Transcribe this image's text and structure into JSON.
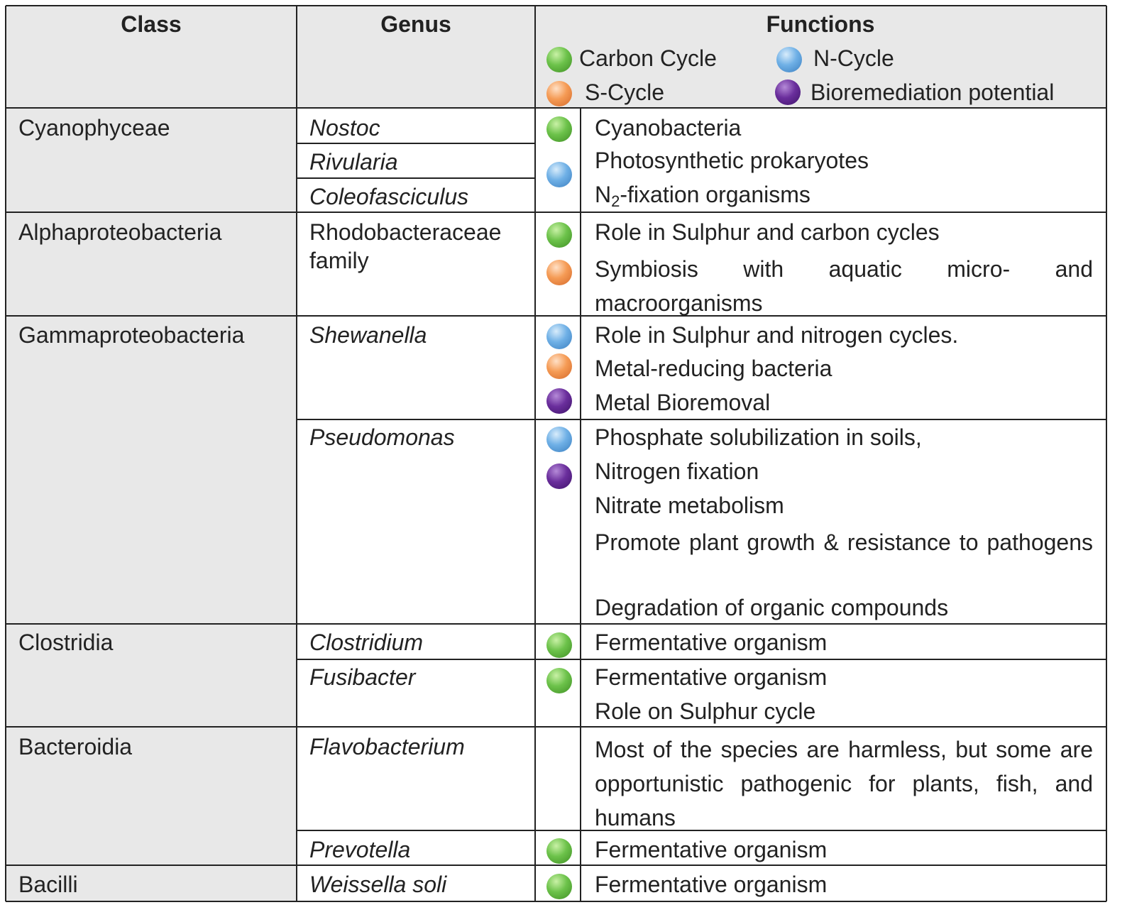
{
  "header": {
    "class": "Class",
    "genus": "Genus",
    "functions": "Functions",
    "legend": [
      {
        "color": "green",
        "icon": "green-dot-icon",
        "label": "Carbon Cycle"
      },
      {
        "color": "blue",
        "icon": "blue-dot-icon",
        "label": "N-Cycle"
      },
      {
        "color": "orange",
        "icon": "orange-dot-icon",
        "label": "S-Cycle"
      },
      {
        "color": "purple",
        "icon": "purple-dot-icon",
        "label": "Bioremediation potential"
      }
    ]
  },
  "colors": {
    "green": "#6cc24a",
    "blue": "#6fb0e6",
    "orange": "#f59b55",
    "purple": "#6a2e9c",
    "shade": "#e8e8e8"
  },
  "rows": {
    "cyanophyceae": {
      "class": "Cyanophyceae",
      "genera": [
        "Nostoc",
        "Rivularia",
        "Coleofasciculus"
      ],
      "func_1": "Cyanobacteria",
      "func_2": "Photosynthetic prokaryotes",
      "func_3_pre": "N",
      "func_3_sub": "2",
      "func_3_post": "-fixation organisms"
    },
    "alphaproteobacteria": {
      "class": "Alphaproteobacteria",
      "genus": "Rhodobacteraceae family",
      "functions": [
        "Role in Sulphur and carbon cycles",
        "Symbiosis with aquatic micro- and macroorganisms"
      ]
    },
    "gammaproteobacteria": {
      "class": "Gammaproteobacteria",
      "shewanella": {
        "genus": "Shewanella",
        "functions": [
          "Role in Sulphur and nitrogen cycles.",
          "Metal-reducing bacteria",
          "Metal Bioremoval"
        ]
      },
      "pseudomonas": {
        "genus": "Pseudomonas",
        "functions": [
          "Phosphate solubilization in soils,",
          "Nitrogen fixation",
          "Nitrate metabolism",
          "Promote plant growth & resistance to pathogens",
          "Degradation of organic compounds"
        ]
      }
    },
    "clostridia": {
      "class": "Clostridia",
      "clostridium": {
        "genus": "Clostridium",
        "functions": [
          "Fermentative organism"
        ]
      },
      "fusibacter": {
        "genus": "Fusibacter",
        "functions": [
          "Fermentative organism",
          "Role on Sulphur cycle"
        ]
      }
    },
    "bacteroidia": {
      "class": "Bacteroidia",
      "flavobacterium": {
        "genus": "Flavobacterium",
        "functions": [
          "Most of the species are harmless, but some are opportunistic pathogenic for plants, fish, and humans"
        ]
      },
      "prevotella": {
        "genus": "Prevotella",
        "functions": [
          "Fermentative organism"
        ]
      }
    },
    "bacilli": {
      "class": "Bacilli",
      "genus": "Weissella soli",
      "functions": [
        "Fermentative organism"
      ]
    }
  }
}
